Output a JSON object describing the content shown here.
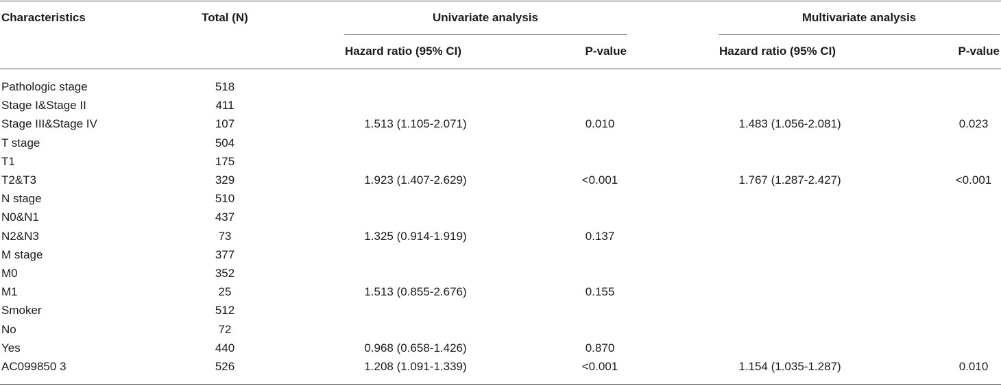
{
  "table": {
    "header": [
      "Characteristics",
      "Total (N)",
      "Univariate analysis",
      "Multivariate analysis"
    ],
    "subheader": [
      "Hazard ratio (95% CI)",
      "P-value",
      "Hazard ratio (95% CI)",
      "P-value"
    ],
    "rows": [
      [
        "Pathologic stage",
        518,
        null,
        null,
        null,
        null
      ],
      [
        "Stage I&Stage II",
        411,
        null,
        null,
        null,
        null
      ],
      [
        "Stage III&Stage IV",
        107,
        "1.513 (1.105-2.071)",
        "0.010",
        "1.483 (1.056-2.081)",
        "0.023"
      ],
      [
        "T stage",
        504,
        null,
        null,
        null,
        null
      ],
      [
        "T1",
        175,
        null,
        null,
        null,
        null
      ],
      [
        "T2&T3",
        329,
        "1.923 (1.407-2.629)",
        "<0.001",
        "1.767 (1.287-2.427)",
        "<0.001"
      ],
      [
        "N stage",
        510,
        null,
        null,
        null,
        null
      ],
      [
        "N0&N1",
        437,
        null,
        null,
        null,
        null
      ],
      [
        "N2&N3",
        73,
        "1.325 (0.914-1.919)",
        "0.137",
        null,
        null
      ],
      [
        "M stage",
        377,
        null,
        null,
        null,
        null
      ],
      [
        "M0",
        352,
        null,
        null,
        null,
        null
      ],
      [
        "M1",
        25,
        "1.513 (0.855-2.676)",
        "0.155",
        null,
        null
      ],
      [
        "Smoker",
        512,
        null,
        null,
        null,
        null
      ],
      [
        "No",
        72,
        null,
        null,
        null,
        null
      ],
      [
        "Yes",
        440,
        "0.968 (0.658-1.426)",
        "0.870",
        null,
        null
      ],
      [
        "AC099850 3",
        526,
        "1.208 (1.091-1.339)",
        "<0.001",
        "1.154 (1.035-1.287)",
        "0.010"
      ]
    ]
  }
}
